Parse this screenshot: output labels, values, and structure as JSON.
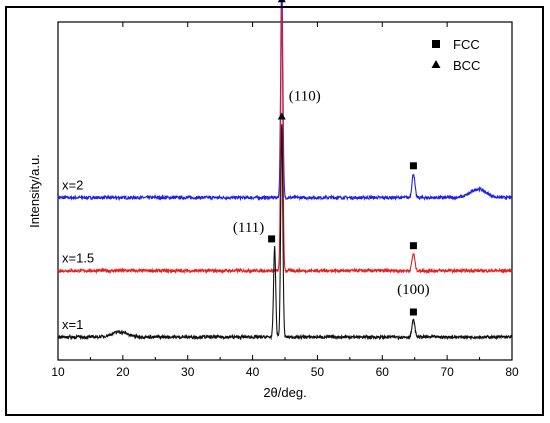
{
  "chart_data": {
    "type": "line",
    "title": "",
    "xlabel": "2θ/deg.",
    "ylabel": "Intensity/a.u.",
    "xlim": [
      10,
      80
    ],
    "xticks": [
      10,
      20,
      30,
      40,
      50,
      60,
      70,
      80
    ],
    "y_tick_labels": "none",
    "grid": false,
    "legend_position": "top-right",
    "legend": [
      {
        "label": "FCC",
        "marker": "square"
      },
      {
        "label": "BCC",
        "marker": "triangle"
      }
    ],
    "colors": {
      "x=2": "#1f1fe6",
      "x=1.5": "#e61f1f",
      "x=1": "#111111"
    },
    "series": [
      {
        "name": "x=2",
        "baseline": 0.82,
        "peaks": [
          {
            "two_theta": 44.5,
            "height": 1.3
          },
          {
            "two_theta": 64.8,
            "height": 0.14
          },
          {
            "two_theta": 74.8,
            "height": 0.05
          }
        ]
      },
      {
        "name": "x=1.5",
        "baseline": 0.39,
        "peaks": [
          {
            "two_theta": 44.5,
            "height": 1.55
          },
          {
            "two_theta": 64.8,
            "height": 0.1
          }
        ]
      },
      {
        "name": "x=1",
        "baseline": 0.0,
        "peaks": [
          {
            "two_theta": 19.5,
            "height": 0.03
          },
          {
            "two_theta": 43.4,
            "height": 0.53
          },
          {
            "two_theta": 44.5,
            "height": 1.25
          },
          {
            "two_theta": 64.8,
            "height": 0.1
          }
        ]
      }
    ],
    "markers": [
      {
        "symbol": "triangle",
        "two_theta": 44.5,
        "series": "x=2"
      },
      {
        "symbol": "square",
        "two_theta": 64.8,
        "series": "x=2"
      },
      {
        "symbol": "triangle",
        "two_theta": 44.5,
        "series": "x=1.5"
      },
      {
        "symbol": "square",
        "two_theta": 64.8,
        "series": "x=1.5"
      },
      {
        "symbol": "square",
        "two_theta": 43.4,
        "series": "x=1"
      },
      {
        "symbol": "triangle",
        "two_theta": 44.5,
        "series": "x=1"
      },
      {
        "symbol": "square",
        "two_theta": 64.8,
        "series": "x=1"
      }
    ],
    "peak_labels": [
      {
        "text": "(111)",
        "two_theta": 43.4,
        "series": "x=1"
      },
      {
        "text": "(110)",
        "two_theta": 44.5,
        "series": "x=1"
      },
      {
        "text": "(100)",
        "two_theta": 64.8,
        "series": "x=1"
      }
    ]
  }
}
